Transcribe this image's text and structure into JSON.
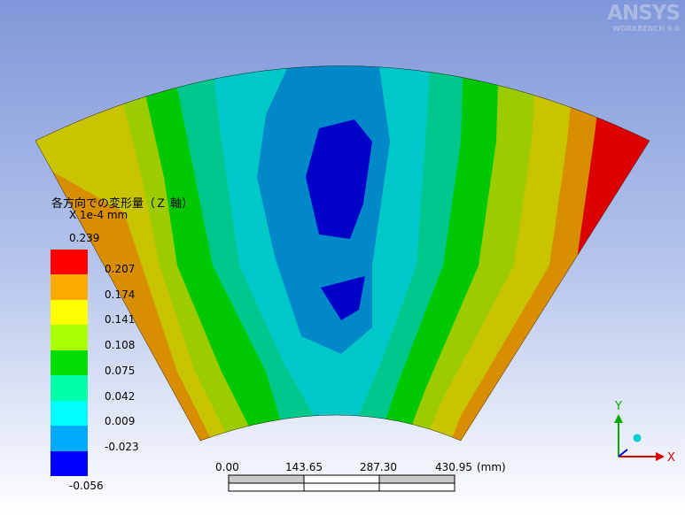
{
  "logo": {
    "brand": "ANSYS",
    "sub": "WORKBENCH 9.0"
  },
  "legend": {
    "title": "各方向での変形量（Ｚ 軸）",
    "scale": "X 1e-4 mm",
    "max": "0.239",
    "min": "-0.056",
    "levels": [
      "0.207",
      "0.174",
      "0.141",
      "0.108",
      "0.075",
      "0.042",
      "0.009",
      "-0.023"
    ],
    "colors": [
      "#ff0000",
      "#ffaa00",
      "#ffff00",
      "#aaff00",
      "#00dd00",
      "#00ffaa",
      "#00ffff",
      "#00aaff",
      "#0000ff"
    ]
  },
  "scale_bar": {
    "ticks": [
      "0.00",
      "143.65",
      "287.30",
      "430.95"
    ],
    "unit": "(mm)"
  },
  "triad": {
    "x": "X",
    "y": "Y"
  },
  "contour_colors": {
    "red": "#dd0000",
    "orange": "#d98e00",
    "yellow": "#c8c400",
    "lime": "#9ccc00",
    "green": "#00c800",
    "teal": "#00c88c",
    "cyan": "#00c8c8",
    "blue": "#0088c8",
    "darkblue": "#0000c8"
  }
}
